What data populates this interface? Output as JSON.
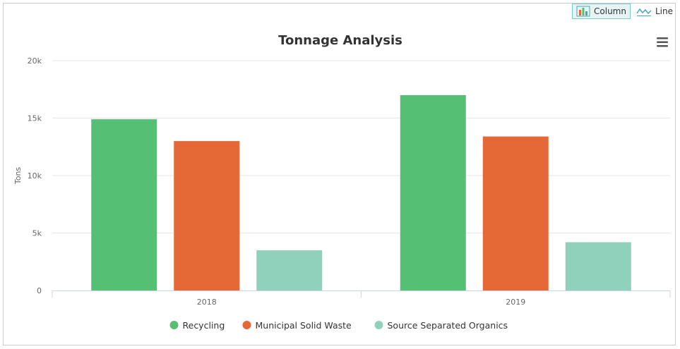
{
  "toolbar": {
    "column_label": "Column",
    "line_label": "Line",
    "active": "column"
  },
  "menu_icon": "hamburger-menu-icon",
  "chart_data": {
    "type": "bar",
    "title": "Tonnage Analysis",
    "xlabel": "",
    "ylabel": "Tons",
    "categories": [
      "2018",
      "2019"
    ],
    "series": [
      {
        "name": "Recycling",
        "color": "#55bf73",
        "values": [
          14900,
          17000
        ]
      },
      {
        "name": "Municipal Solid Waste",
        "color": "#e56837",
        "values": [
          13000,
          13400
        ]
      },
      {
        "name": "Source Separated Organics",
        "color": "#8fd1ba",
        "values": [
          3500,
          4200
        ]
      }
    ],
    "ylim": [
      0,
      20000
    ],
    "yticks": [
      0,
      5000,
      10000,
      15000,
      20000
    ],
    "ytick_labels": [
      "0",
      "5k",
      "10k",
      "15k",
      "20k"
    ],
    "grid": true,
    "legend_position": "bottom-center"
  }
}
